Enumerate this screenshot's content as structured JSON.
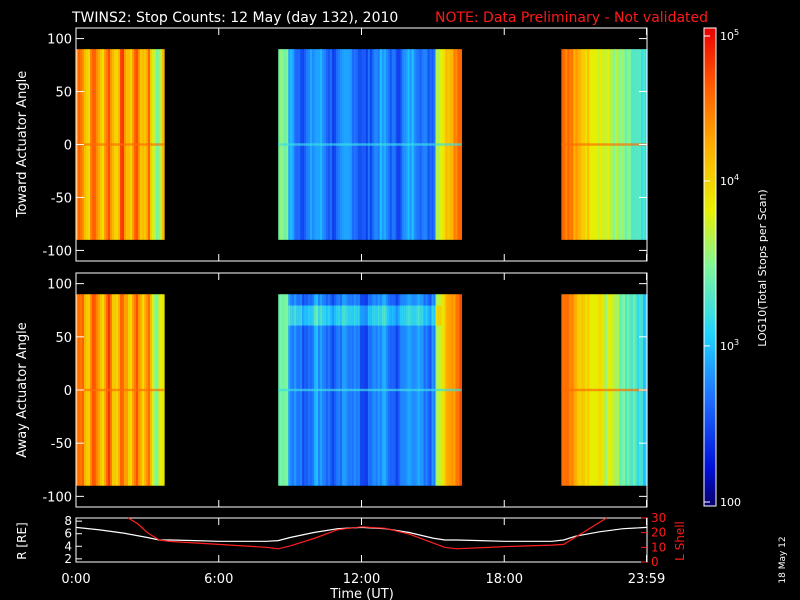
{
  "header": {
    "title": "TWINS2: Stop Counts: 12 May (day 132), 2010",
    "note": "NOTE: Data Preliminary - Not validated"
  },
  "footer": {
    "date_stamp": "18 May 12"
  },
  "colors": {
    "background": "#000000",
    "axes": "#ffffff",
    "note_red": "#ff2020",
    "r_line": "#ffffff",
    "lshell_line": "#ff2020"
  },
  "chart_data": [
    {
      "type": "heatmap",
      "panel": "top",
      "ylabel": "Toward Actuator Angle",
      "xlabel": "",
      "ylim": [
        -110,
        110
      ],
      "yticks": [
        100,
        50,
        0,
        -50,
        -100
      ],
      "xlim_hours": [
        0,
        24
      ],
      "xticks": [
        "0:00",
        "6:00",
        "12:00",
        "18:00",
        "23:59"
      ],
      "data_y_range": [
        -90,
        90
      ],
      "data_blocks_hours": [
        [
          0,
          3.7
        ],
        [
          8.5,
          16.2
        ],
        [
          20.4,
          24
        ]
      ],
      "colorscale": {
        "label": "LOG10(Total Stops per Scan)",
        "min": 100,
        "max": 100000,
        "scale": "log"
      }
    },
    {
      "type": "heatmap",
      "panel": "middle",
      "ylabel": "Away Actuator Angle",
      "xlabel": "",
      "ylim": [
        -110,
        110
      ],
      "yticks": [
        100,
        50,
        0,
        -50,
        -100
      ],
      "xlim_hours": [
        0,
        24
      ],
      "xticks": [
        "0:00",
        "6:00",
        "12:00",
        "18:00",
        "23:59"
      ],
      "data_y_range": [
        -90,
        90
      ],
      "data_blocks_hours": [
        [
          0,
          3.7
        ],
        [
          8.5,
          16.2
        ],
        [
          20.4,
          24
        ]
      ]
    },
    {
      "type": "line",
      "panel": "bottom",
      "xlabel": "Time (UT)",
      "xticks": [
        "0:00",
        "6:00",
        "12:00",
        "18:00",
        "23:59"
      ],
      "left_axis": {
        "label": "R [RE]",
        "ticks": [
          8,
          6,
          4,
          2
        ],
        "ylim": [
          1.5,
          8.5
        ]
      },
      "right_axis": {
        "label": "L Shell",
        "ticks": [
          30,
          20,
          10,
          0
        ],
        "ylim": [
          0,
          30
        ]
      },
      "series": [
        {
          "name": "R [RE]",
          "x_hours": [
            0,
            1,
            2,
            3,
            3.5,
            4,
            5,
            6,
            7,
            8,
            8.5,
            9,
            10,
            11,
            12,
            13,
            14,
            15,
            15.5,
            16,
            17,
            18,
            19,
            20,
            20.5,
            21,
            22,
            23,
            24
          ],
          "values": [
            7.0,
            6.6,
            6.1,
            5.4,
            5.0,
            5.0,
            4.9,
            4.8,
            4.8,
            4.8,
            4.9,
            5.4,
            6.2,
            6.8,
            7.0,
            6.8,
            6.2,
            5.3,
            5.0,
            5.0,
            4.9,
            4.8,
            4.8,
            4.8,
            5.0,
            5.6,
            6.3,
            6.8,
            7.0
          ]
        },
        {
          "name": "L Shell",
          "x_hours": [
            2.2,
            2.6,
            3.0,
            3.5,
            4,
            6,
            8,
            8.5,
            9,
            10,
            11,
            12,
            13,
            14,
            15,
            15.5,
            16,
            18,
            20,
            20.5,
            21,
            21.5,
            22,
            22.3
          ],
          "values": [
            30,
            26,
            20,
            15,
            14,
            12,
            10,
            9,
            11,
            16,
            22,
            24,
            23,
            19,
            13,
            10,
            9,
            10.5,
            11.5,
            12,
            17,
            22,
            27,
            30
          ]
        }
      ]
    }
  ],
  "colorbar": {
    "tick_labels": [
      "10^5",
      "10^4",
      "10^3",
      "100"
    ],
    "label": "LOG10(Total Stops per Scan)"
  }
}
